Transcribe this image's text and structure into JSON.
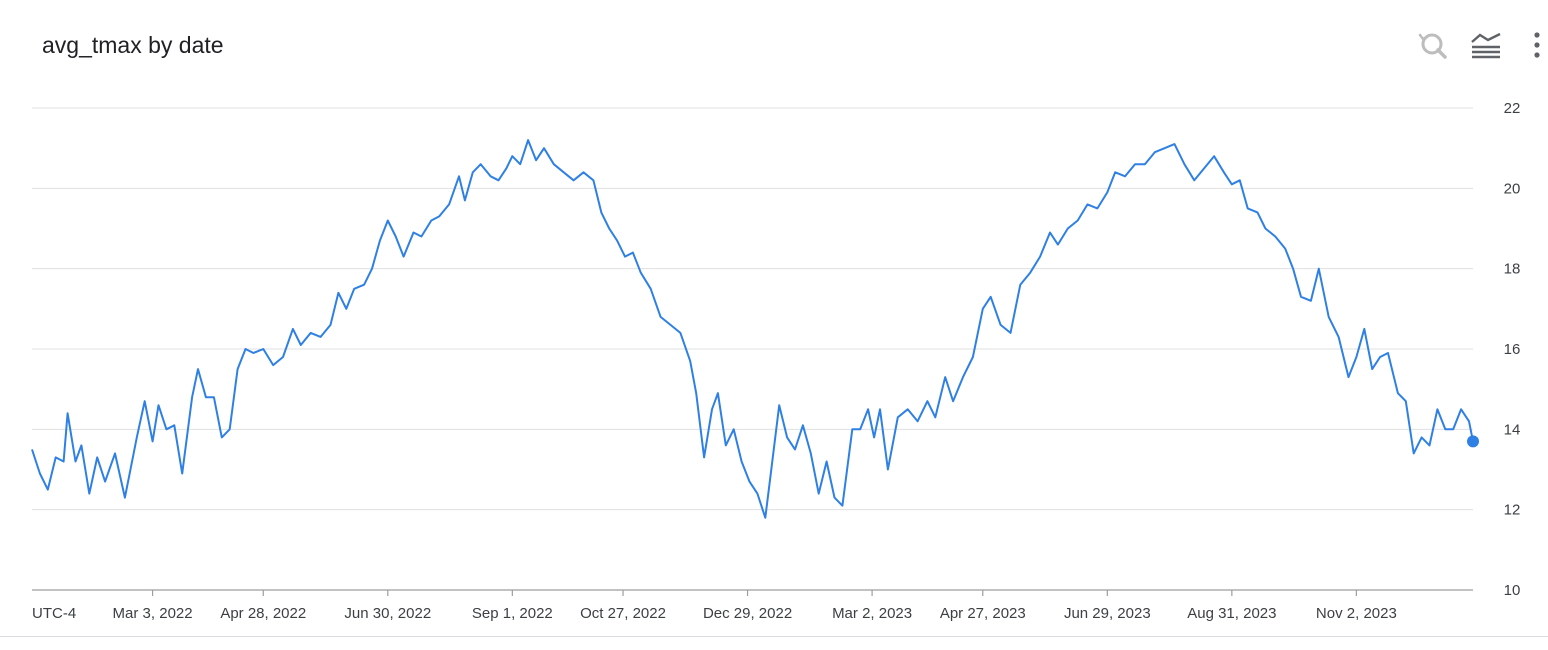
{
  "header": {
    "title": "avg_tmax by date"
  },
  "toolbar": {
    "zoom_reset_icon": "zoom-reset-icon",
    "legend_icon": "legend-toggle-icon",
    "more_icon": "more-vert-icon"
  },
  "colors": {
    "series": "#2f80e4",
    "grid": "#e0e0e0",
    "axis": "#9e9e9e",
    "text": "#3c4043"
  },
  "chart_data": {
    "type": "line",
    "title": "avg_tmax by date",
    "xlabel": "",
    "ylabel": "",
    "timezone_label": "UTC-4",
    "ylim": [
      10,
      22
    ],
    "y_ticks": [
      10,
      12,
      14,
      16,
      18,
      20,
      22
    ],
    "x_range": [
      "2022-01-01",
      "2023-12-31"
    ],
    "x_ticks": [
      {
        "date": "2022-03-03",
        "label": "Mar 3, 2022"
      },
      {
        "date": "2022-04-28",
        "label": "Apr 28, 2022"
      },
      {
        "date": "2022-06-30",
        "label": "Jun 30, 2022"
      },
      {
        "date": "2022-09-01",
        "label": "Sep 1, 2022"
      },
      {
        "date": "2022-10-27",
        "label": "Oct 27, 2022"
      },
      {
        "date": "2022-12-29",
        "label": "Dec 29, 2022"
      },
      {
        "date": "2023-03-02",
        "label": "Mar 2, 2023"
      },
      {
        "date": "2023-04-27",
        "label": "Apr 27, 2023"
      },
      {
        "date": "2023-06-29",
        "label": "Jun 29, 2023"
      },
      {
        "date": "2023-08-31",
        "label": "Aug 31, 2023"
      },
      {
        "date": "2023-11-02",
        "label": "Nov 2, 2023"
      }
    ],
    "grid": true,
    "legend": "none",
    "series": [
      {
        "points": [
          [
            "2022-01-01",
            13.5
          ],
          [
            "2022-01-05",
            12.9
          ],
          [
            "2022-01-09",
            12.5
          ],
          [
            "2022-01-13",
            13.3
          ],
          [
            "2022-01-17",
            13.2
          ],
          [
            "2022-01-19",
            14.4
          ],
          [
            "2022-01-23",
            13.2
          ],
          [
            "2022-01-26",
            13.6
          ],
          [
            "2022-01-30",
            12.4
          ],
          [
            "2022-02-03",
            13.3
          ],
          [
            "2022-02-07",
            12.7
          ],
          [
            "2022-02-12",
            13.4
          ],
          [
            "2022-02-17",
            12.3
          ],
          [
            "2022-02-23",
            13.8
          ],
          [
            "2022-02-27",
            14.7
          ],
          [
            "2022-03-03",
            13.7
          ],
          [
            "2022-03-06",
            14.6
          ],
          [
            "2022-03-10",
            14.0
          ],
          [
            "2022-03-14",
            14.1
          ],
          [
            "2022-03-18",
            12.9
          ],
          [
            "2022-03-23",
            14.8
          ],
          [
            "2022-03-26",
            15.5
          ],
          [
            "2022-03-30",
            14.8
          ],
          [
            "2022-04-03",
            14.8
          ],
          [
            "2022-04-07",
            13.8
          ],
          [
            "2022-04-11",
            14.0
          ],
          [
            "2022-04-15",
            15.5
          ],
          [
            "2022-04-19",
            16.0
          ],
          [
            "2022-04-23",
            15.9
          ],
          [
            "2022-04-28",
            16.0
          ],
          [
            "2022-05-03",
            15.6
          ],
          [
            "2022-05-08",
            15.8
          ],
          [
            "2022-05-13",
            16.5
          ],
          [
            "2022-05-17",
            16.1
          ],
          [
            "2022-05-22",
            16.4
          ],
          [
            "2022-05-27",
            16.3
          ],
          [
            "2022-06-01",
            16.6
          ],
          [
            "2022-06-05",
            17.4
          ],
          [
            "2022-06-09",
            17.0
          ],
          [
            "2022-06-13",
            17.5
          ],
          [
            "2022-06-18",
            17.6
          ],
          [
            "2022-06-22",
            18.0
          ],
          [
            "2022-06-26",
            18.7
          ],
          [
            "2022-06-30",
            19.2
          ],
          [
            "2022-07-04",
            18.8
          ],
          [
            "2022-07-08",
            18.3
          ],
          [
            "2022-07-13",
            18.9
          ],
          [
            "2022-07-17",
            18.8
          ],
          [
            "2022-07-22",
            19.2
          ],
          [
            "2022-07-26",
            19.3
          ],
          [
            "2022-07-31",
            19.6
          ],
          [
            "2022-08-05",
            20.3
          ],
          [
            "2022-08-08",
            19.7
          ],
          [
            "2022-08-12",
            20.4
          ],
          [
            "2022-08-16",
            20.6
          ],
          [
            "2022-08-21",
            20.3
          ],
          [
            "2022-08-25",
            20.2
          ],
          [
            "2022-08-29",
            20.5
          ],
          [
            "2022-09-01",
            20.8
          ],
          [
            "2022-09-05",
            20.6
          ],
          [
            "2022-09-09",
            21.2
          ],
          [
            "2022-09-13",
            20.7
          ],
          [
            "2022-09-17",
            21.0
          ],
          [
            "2022-09-22",
            20.6
          ],
          [
            "2022-09-27",
            20.4
          ],
          [
            "2022-10-02",
            20.2
          ],
          [
            "2022-10-07",
            20.4
          ],
          [
            "2022-10-12",
            20.2
          ],
          [
            "2022-10-16",
            19.4
          ],
          [
            "2022-10-20",
            19.0
          ],
          [
            "2022-10-24",
            18.7
          ],
          [
            "2022-10-28",
            18.3
          ],
          [
            "2022-11-01",
            18.4
          ],
          [
            "2022-11-05",
            17.9
          ],
          [
            "2022-11-10",
            17.5
          ],
          [
            "2022-11-15",
            16.8
          ],
          [
            "2022-11-20",
            16.6
          ],
          [
            "2022-11-25",
            16.4
          ],
          [
            "2022-11-30",
            15.7
          ],
          [
            "2022-12-03",
            14.9
          ],
          [
            "2022-12-07",
            13.3
          ],
          [
            "2022-12-11",
            14.5
          ],
          [
            "2022-12-14",
            14.9
          ],
          [
            "2022-12-18",
            13.6
          ],
          [
            "2022-12-22",
            14.0
          ],
          [
            "2022-12-26",
            13.2
          ],
          [
            "2022-12-30",
            12.7
          ],
          [
            "2023-01-03",
            12.4
          ],
          [
            "2023-01-07",
            11.8
          ],
          [
            "2023-01-10",
            13.0
          ],
          [
            "2023-01-14",
            14.6
          ],
          [
            "2023-01-18",
            13.8
          ],
          [
            "2023-01-22",
            13.5
          ],
          [
            "2023-01-26",
            14.1
          ],
          [
            "2023-01-30",
            13.4
          ],
          [
            "2023-02-03",
            12.4
          ],
          [
            "2023-02-07",
            13.2
          ],
          [
            "2023-02-11",
            12.3
          ],
          [
            "2023-02-15",
            12.1
          ],
          [
            "2023-02-20",
            14.0
          ],
          [
            "2023-02-24",
            14.0
          ],
          [
            "2023-02-28",
            14.5
          ],
          [
            "2023-03-03",
            13.8
          ],
          [
            "2023-03-06",
            14.5
          ],
          [
            "2023-03-10",
            13.0
          ],
          [
            "2023-03-15",
            14.3
          ],
          [
            "2023-03-20",
            14.5
          ],
          [
            "2023-03-25",
            14.2
          ],
          [
            "2023-03-30",
            14.7
          ],
          [
            "2023-04-03",
            14.3
          ],
          [
            "2023-04-08",
            15.3
          ],
          [
            "2023-04-12",
            14.7
          ],
          [
            "2023-04-17",
            15.3
          ],
          [
            "2023-04-22",
            15.8
          ],
          [
            "2023-04-27",
            17.0
          ],
          [
            "2023-05-01",
            17.3
          ],
          [
            "2023-05-06",
            16.6
          ],
          [
            "2023-05-11",
            16.4
          ],
          [
            "2023-05-16",
            17.6
          ],
          [
            "2023-05-21",
            17.9
          ],
          [
            "2023-05-26",
            18.3
          ],
          [
            "2023-05-31",
            18.9
          ],
          [
            "2023-06-04",
            18.6
          ],
          [
            "2023-06-09",
            19.0
          ],
          [
            "2023-06-14",
            19.2
          ],
          [
            "2023-06-19",
            19.6
          ],
          [
            "2023-06-24",
            19.5
          ],
          [
            "2023-06-29",
            19.9
          ],
          [
            "2023-07-03",
            20.4
          ],
          [
            "2023-07-08",
            20.3
          ],
          [
            "2023-07-13",
            20.6
          ],
          [
            "2023-07-18",
            20.6
          ],
          [
            "2023-07-23",
            20.9
          ],
          [
            "2023-07-28",
            21.0
          ],
          [
            "2023-08-02",
            21.1
          ],
          [
            "2023-08-07",
            20.6
          ],
          [
            "2023-08-12",
            20.2
          ],
          [
            "2023-08-17",
            20.5
          ],
          [
            "2023-08-22",
            20.8
          ],
          [
            "2023-08-27",
            20.4
          ],
          [
            "2023-08-31",
            20.1
          ],
          [
            "2023-09-04",
            20.2
          ],
          [
            "2023-09-08",
            19.5
          ],
          [
            "2023-09-13",
            19.4
          ],
          [
            "2023-09-17",
            19.0
          ],
          [
            "2023-09-22",
            18.8
          ],
          [
            "2023-09-27",
            18.5
          ],
          [
            "2023-10-01",
            18.0
          ],
          [
            "2023-10-05",
            17.3
          ],
          [
            "2023-10-10",
            17.2
          ],
          [
            "2023-10-14",
            18.0
          ],
          [
            "2023-10-19",
            16.8
          ],
          [
            "2023-10-24",
            16.3
          ],
          [
            "2023-10-29",
            15.3
          ],
          [
            "2023-11-02",
            15.8
          ],
          [
            "2023-11-06",
            16.5
          ],
          [
            "2023-11-10",
            15.5
          ],
          [
            "2023-11-14",
            15.8
          ],
          [
            "2023-11-18",
            15.9
          ],
          [
            "2023-11-23",
            14.9
          ],
          [
            "2023-11-27",
            14.7
          ],
          [
            "2023-12-01",
            13.4
          ],
          [
            "2023-12-05",
            13.8
          ],
          [
            "2023-12-09",
            13.6
          ],
          [
            "2023-12-13",
            14.5
          ],
          [
            "2023-12-17",
            14.0
          ],
          [
            "2023-12-21",
            14.0
          ],
          [
            "2023-12-25",
            14.5
          ],
          [
            "2023-12-29",
            14.2
          ],
          [
            "2023-12-31",
            13.7
          ]
        ]
      }
    ]
  }
}
